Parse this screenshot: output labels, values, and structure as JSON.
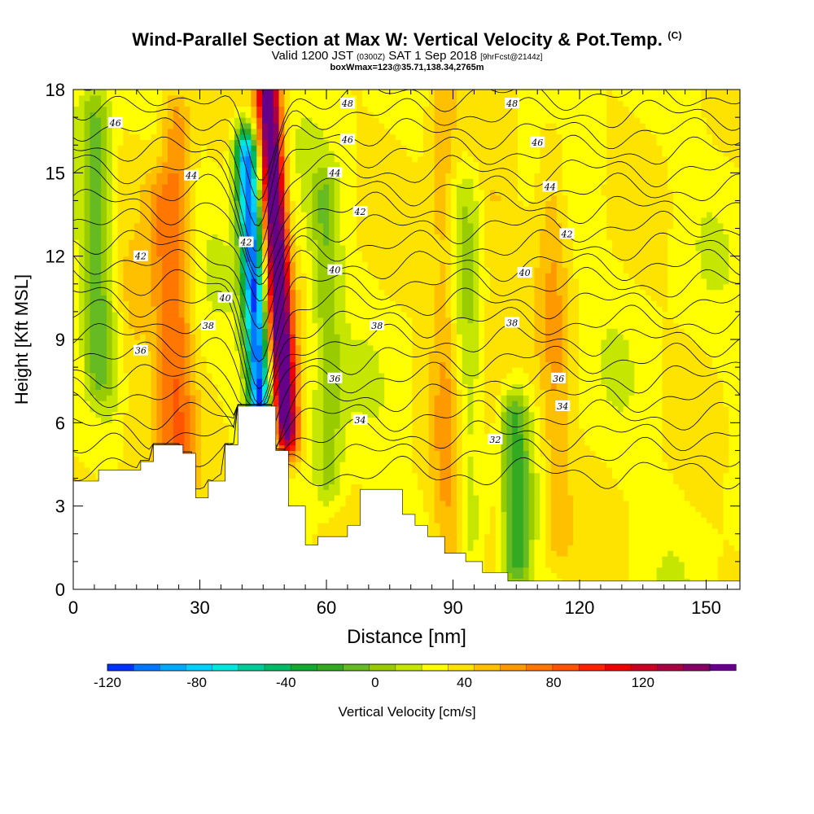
{
  "header": {
    "title": "Wind-Parallel Section at Max W: Vertical Velocity & Pot.Temp.",
    "title_tag": "(C)",
    "valid_line_a": "Valid 1200 JST",
    "valid_line_z": "(0300Z)",
    "valid_line_b": "SAT 1 Sep 2018",
    "valid_line_fcst": "[9hrFcst@2144z]",
    "box_line": "boxWmax=123@35.71,138.34,2765m"
  },
  "chart_data": {
    "type": "contour",
    "title": "Wind-Parallel Section at Max W: Vertical Velocity & Pot.Temp.",
    "xlabel": "Distance [nm]",
    "ylabel": "Height [Kft MSL]",
    "xlim": [
      0,
      158
    ],
    "ylim": [
      0,
      18
    ],
    "xticks": [
      0,
      30,
      60,
      90,
      120,
      150
    ],
    "yticks": [
      0,
      3,
      6,
      9,
      12,
      15,
      18
    ],
    "colorbar": {
      "label": "Vertical Velocity [cm/s]",
      "min": -120,
      "max": 150,
      "step": 10,
      "tick_labels": [
        "-120",
        "-80",
        "-40",
        "0",
        "40",
        "80",
        "120"
      ],
      "colors": [
        "#0000ff",
        "#0033ff",
        "#0077ff",
        "#00aaff",
        "#00d0ff",
        "#00e8dd",
        "#00cc99",
        "#00bb66",
        "#11aa33",
        "#33aa22",
        "#66bb22",
        "#99cc00",
        "#c4e600",
        "#ffff00",
        "#ffe300",
        "#ffc000",
        "#ff9900",
        "#ff7700",
        "#ff5500",
        "#ff2200",
        "#ee0000",
        "#cc0022",
        "#aa0044",
        "#880066",
        "#660088"
      ]
    },
    "terrain_profile": [
      [
        0,
        3.9
      ],
      [
        6,
        3.9
      ],
      [
        6,
        4.3
      ],
      [
        16,
        4.3
      ],
      [
        16,
        4.6
      ],
      [
        19,
        4.6
      ],
      [
        19,
        5.2
      ],
      [
        26,
        5.2
      ],
      [
        26,
        4.9
      ],
      [
        29,
        4.9
      ],
      [
        29,
        3.3
      ],
      [
        32,
        3.3
      ],
      [
        32,
        3.9
      ],
      [
        36,
        3.9
      ],
      [
        36,
        5.2
      ],
      [
        39,
        5.2
      ],
      [
        39,
        6.6
      ],
      [
        48,
        6.6
      ],
      [
        48,
        5.0
      ],
      [
        51,
        5.0
      ],
      [
        51,
        3.0
      ],
      [
        55,
        3.0
      ],
      [
        55,
        1.6
      ],
      [
        58,
        1.6
      ],
      [
        58,
        1.9
      ],
      [
        65,
        1.9
      ],
      [
        65,
        2.3
      ],
      [
        68,
        2.3
      ],
      [
        68,
        3.6
      ],
      [
        78,
        3.6
      ],
      [
        78,
        2.7
      ],
      [
        81,
        2.7
      ],
      [
        81,
        2.3
      ],
      [
        84,
        2.3
      ],
      [
        84,
        1.9
      ],
      [
        88,
        1.9
      ],
      [
        88,
        1.3
      ],
      [
        93,
        1.3
      ],
      [
        93,
        1.0
      ],
      [
        97,
        1.0
      ],
      [
        97,
        0.6
      ],
      [
        103,
        0.6
      ],
      [
        103,
        0.3
      ],
      [
        158,
        0.3
      ]
    ],
    "w_features": [
      {
        "x": 43,
        "y0": 6.5,
        "y1": 15.5,
        "w": -120
      },
      {
        "x": 49,
        "y0": 6.0,
        "y1": 18.0,
        "w": 125
      },
      {
        "x": 25,
        "y0": 4.5,
        "y1": 17.0,
        "w": 30
      },
      {
        "x": 21,
        "y0": 4.8,
        "y1": 14.0,
        "w": 20
      },
      {
        "x": 14,
        "y0": 4.0,
        "y1": 11.0,
        "w": 15
      },
      {
        "x": 88,
        "y0": 1.5,
        "y1": 18.0,
        "w": 20
      },
      {
        "x": 100,
        "y0": 2.0,
        "y1": 14.0,
        "w": 12
      },
      {
        "x": 114,
        "y0": 2.0,
        "y1": 16.0,
        "w": 18
      },
      {
        "x": 6,
        "y0": 8.0,
        "y1": 17.0,
        "w": -30
      },
      {
        "x": 60,
        "y0": 4.0,
        "y1": 14.0,
        "w": -25
      },
      {
        "x": 104,
        "y0": 1.0,
        "y1": 6.0,
        "w": -40
      },
      {
        "x": 93,
        "y0": 2.0,
        "y1": 14.0,
        "w": -15
      }
    ],
    "theta_contours": [
      {
        "value": 30,
        "labeled": false
      },
      {
        "value": 31,
        "labeled": false
      },
      {
        "value": 32,
        "labeled": true,
        "label_x": 100
      },
      {
        "value": 33,
        "labeled": false
      },
      {
        "value": 34,
        "labeled": true,
        "label_x": 68
      },
      {
        "value": 35,
        "labeled": false
      },
      {
        "value": 36,
        "labeled": true,
        "label_x": 17
      },
      {
        "value": 37,
        "labeled": false
      },
      {
        "value": 38,
        "labeled": true,
        "label_x": 32
      },
      {
        "value": 39,
        "labeled": false
      },
      {
        "value": 40,
        "labeled": true,
        "label_x": 36
      },
      {
        "value": 41,
        "labeled": false
      },
      {
        "value": 42,
        "labeled": true,
        "label_x": 16
      },
      {
        "value": 43,
        "labeled": false
      },
      {
        "value": 44,
        "labeled": true,
        "label_x": 62
      },
      {
        "value": 45,
        "labeled": false
      },
      {
        "value": 46,
        "labeled": true,
        "label_x": 64
      },
      {
        "value": 47,
        "labeled": false
      },
      {
        "value": 48,
        "labeled": true,
        "label_x": 65
      },
      {
        "value": 49,
        "labeled": false
      },
      {
        "value": 50,
        "labeled": false
      }
    ],
    "theta_labels": [
      {
        "text": "46",
        "x": 10,
        "y": 16.8
      },
      {
        "text": "44",
        "x": 28,
        "y": 14.9
      },
      {
        "text": "42",
        "x": 41,
        "y": 12.5
      },
      {
        "text": "42",
        "x": 16,
        "y": 12.0
      },
      {
        "text": "40",
        "x": 36,
        "y": 10.5
      },
      {
        "text": "38",
        "x": 32,
        "y": 9.5
      },
      {
        "text": "36",
        "x": 16,
        "y": 8.6
      },
      {
        "text": "48",
        "x": 65,
        "y": 17.5
      },
      {
        "text": "46",
        "x": 65,
        "y": 16.2
      },
      {
        "text": "44",
        "x": 62,
        "y": 15.0
      },
      {
        "text": "42",
        "x": 68,
        "y": 13.6
      },
      {
        "text": "40",
        "x": 62,
        "y": 11.5
      },
      {
        "text": "38",
        "x": 72,
        "y": 9.5
      },
      {
        "text": "36",
        "x": 62,
        "y": 7.6
      },
      {
        "text": "34",
        "x": 68,
        "y": 6.1
      },
      {
        "text": "48",
        "x": 104,
        "y": 17.5
      },
      {
        "text": "46",
        "x": 110,
        "y": 16.1
      },
      {
        "text": "44",
        "x": 113,
        "y": 14.5
      },
      {
        "text": "42",
        "x": 117,
        "y": 12.8
      },
      {
        "text": "40",
        "x": 107,
        "y": 11.4
      },
      {
        "text": "38",
        "x": 104,
        "y": 9.6
      },
      {
        "text": "36",
        "x": 115,
        "y": 7.6
      },
      {
        "text": "34",
        "x": 116,
        "y": 6.6
      },
      {
        "text": "32",
        "x": 100,
        "y": 5.4
      }
    ]
  }
}
